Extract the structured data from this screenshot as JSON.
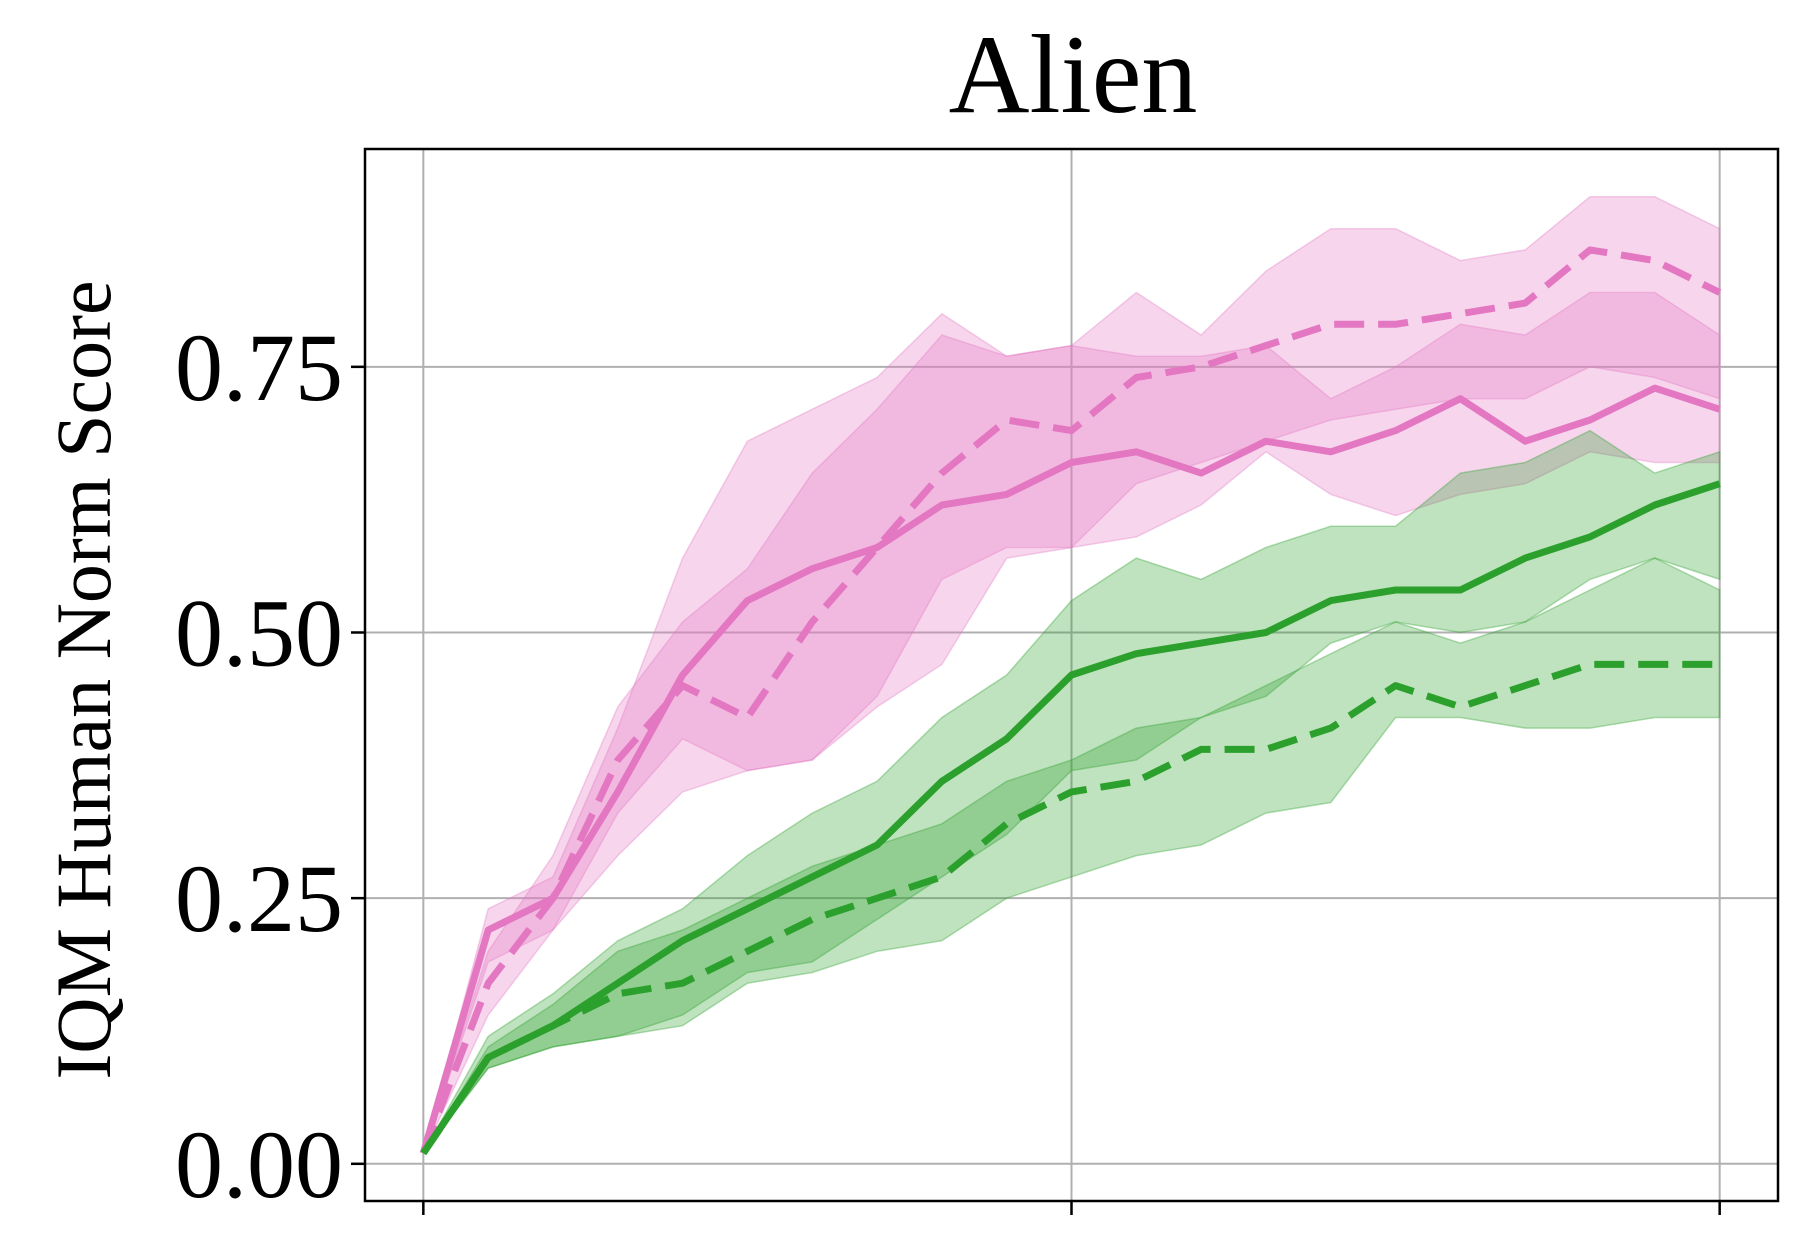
{
  "chart_data": {
    "type": "line",
    "title": "Alien",
    "xlabel": "",
    "ylabel": "IQM Human Norm Score",
    "xlim": [
      -0.045,
      1.045
    ],
    "ylim": [
      -0.035,
      0.955
    ],
    "yticks": [
      {
        "value": 0.0,
        "label": "0.00"
      },
      {
        "value": 0.25,
        "label": "0.25"
      },
      {
        "value": 0.5,
        "label": "0.50"
      },
      {
        "value": 0.75,
        "label": "0.75"
      }
    ],
    "xticks": [
      0.0,
      0.5,
      1.0
    ],
    "grid": true,
    "x": [
      0,
      0.05,
      0.1,
      0.15,
      0.2,
      0.25,
      0.3,
      0.35,
      0.4,
      0.45,
      0.5,
      0.55,
      0.6,
      0.65,
      0.7,
      0.75,
      0.8,
      0.85,
      0.9,
      0.95,
      1.0
    ],
    "series": [
      {
        "color": "#e377c2",
        "dashed": true,
        "values": [
          0.01,
          0.17,
          0.25,
          0.38,
          0.45,
          0.42,
          0.51,
          0.58,
          0.65,
          0.7,
          0.69,
          0.74,
          0.75,
          0.77,
          0.79,
          0.79,
          0.8,
          0.81,
          0.86,
          0.85,
          0.82
        ],
        "lower": [
          0.01,
          0.14,
          0.22,
          0.33,
          0.4,
          0.37,
          0.38,
          0.43,
          0.47,
          0.57,
          0.58,
          0.64,
          0.66,
          0.68,
          0.7,
          0.71,
          0.72,
          0.72,
          0.75,
          0.74,
          0.72
        ],
        "upper": [
          0.01,
          0.2,
          0.29,
          0.43,
          0.51,
          0.56,
          0.65,
          0.71,
          0.78,
          0.76,
          0.77,
          0.82,
          0.78,
          0.84,
          0.88,
          0.88,
          0.85,
          0.86,
          0.91,
          0.91,
          0.88
        ]
      },
      {
        "color": "#e377c2",
        "dashed": false,
        "values": [
          0.01,
          0.22,
          0.25,
          0.35,
          0.46,
          0.53,
          0.56,
          0.58,
          0.62,
          0.63,
          0.66,
          0.67,
          0.65,
          0.68,
          0.67,
          0.69,
          0.72,
          0.68,
          0.7,
          0.73,
          0.71
        ],
        "lower": [
          0.01,
          0.19,
          0.22,
          0.29,
          0.35,
          0.37,
          0.38,
          0.44,
          0.55,
          0.58,
          0.58,
          0.59,
          0.62,
          0.67,
          0.63,
          0.61,
          0.63,
          0.64,
          0.67,
          0.66,
          0.66
        ],
        "upper": [
          0.01,
          0.24,
          0.27,
          0.41,
          0.57,
          0.68,
          0.71,
          0.74,
          0.8,
          0.76,
          0.77,
          0.76,
          0.76,
          0.77,
          0.72,
          0.75,
          0.79,
          0.78,
          0.82,
          0.82,
          0.78
        ]
      },
      {
        "color": "#2ca02c",
        "dashed": false,
        "values": [
          0.01,
          0.1,
          0.13,
          0.17,
          0.21,
          0.24,
          0.27,
          0.3,
          0.36,
          0.4,
          0.46,
          0.48,
          0.49,
          0.5,
          0.53,
          0.54,
          0.54,
          0.57,
          0.59,
          0.62,
          0.64
        ],
        "lower": [
          0.01,
          0.09,
          0.11,
          0.12,
          0.14,
          0.18,
          0.19,
          0.23,
          0.27,
          0.31,
          0.37,
          0.38,
          0.42,
          0.44,
          0.49,
          0.51,
          0.5,
          0.51,
          0.55,
          0.57,
          0.55
        ],
        "upper": [
          0.01,
          0.12,
          0.16,
          0.21,
          0.24,
          0.29,
          0.33,
          0.36,
          0.42,
          0.46,
          0.53,
          0.57,
          0.55,
          0.58,
          0.6,
          0.6,
          0.65,
          0.66,
          0.69,
          0.65,
          0.67
        ]
      },
      {
        "color": "#2ca02c",
        "dashed": true,
        "values": [
          0.01,
          0.1,
          0.13,
          0.16,
          0.17,
          0.2,
          0.23,
          0.25,
          0.27,
          0.32,
          0.35,
          0.36,
          0.39,
          0.39,
          0.41,
          0.45,
          0.43,
          0.45,
          0.47,
          0.47,
          0.47
        ],
        "lower": [
          0.01,
          0.09,
          0.11,
          0.12,
          0.13,
          0.17,
          0.18,
          0.2,
          0.21,
          0.25,
          0.27,
          0.29,
          0.3,
          0.33,
          0.34,
          0.42,
          0.42,
          0.41,
          0.41,
          0.42,
          0.42
        ],
        "upper": [
          0.01,
          0.11,
          0.15,
          0.2,
          0.22,
          0.25,
          0.28,
          0.3,
          0.32,
          0.36,
          0.38,
          0.41,
          0.42,
          0.45,
          0.48,
          0.51,
          0.49,
          0.51,
          0.54,
          0.57,
          0.54
        ]
      }
    ]
  }
}
